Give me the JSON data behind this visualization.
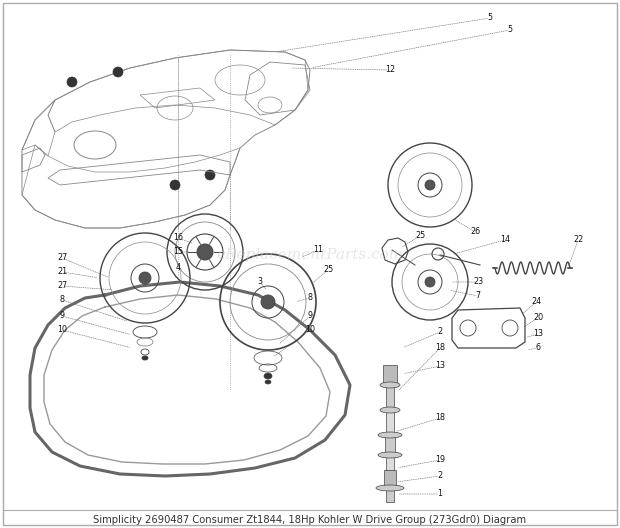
{
  "title": "Simplicity 2690487 Consumer Zt1844, 18Hp Kohler W Drive Group (273Gdr0) Diagram",
  "watermark": "eReplacementParts.com",
  "bg_color": "#ffffff",
  "title_color": "#333333",
  "title_fontsize": 7.2,
  "watermark_color": "#cccccc",
  "watermark_fontsize": 11,
  "watermark_alpha": 0.5,
  "fig_width": 6.2,
  "fig_height": 5.28,
  "dpi": 100,
  "border_lw": 1.0,
  "border_color": "#aaaaaa",
  "line_color": "#888888",
  "dark_color": "#444444",
  "leader_color": "#777777",
  "leader_lw": 0.5,
  "part_fontsize": 5.8,
  "belt_lw_outer": 2.2,
  "belt_lw_inner": 1.0
}
